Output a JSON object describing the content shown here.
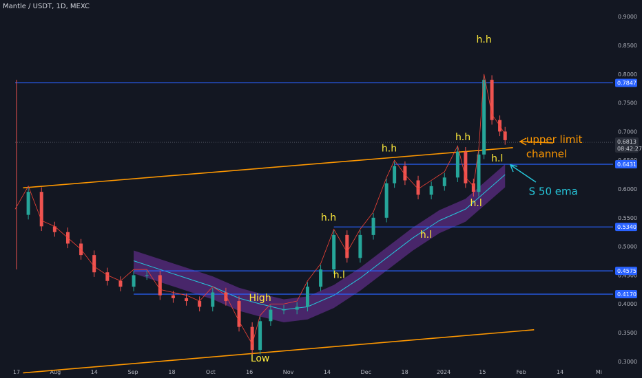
{
  "header": {
    "title": "Mantle / USDT, 1D, MEXC"
  },
  "colors": {
    "background": "#131722",
    "up": "#26a69a",
    "down": "#ef5350",
    "horizontal_line": "#2962ff",
    "channel_line": "#ff9800",
    "ema_band": "#5b2c83",
    "ema_line": "#26c6da",
    "short_ma": "#f44336",
    "annotation_text": "#ffeb3b",
    "price_tag": "#2962ff"
  },
  "chart_data": {
    "type": "candlestick",
    "title": "Mantle / USDT, 1D, MEXC",
    "x_axis": {
      "tick_labels": [
        "17",
        "Aug",
        "14",
        "Sep",
        "18",
        "Oct",
        "16",
        "Nov",
        "14",
        "Dec",
        "18",
        "2024",
        "15",
        "Feb",
        "14",
        "Mi"
      ],
      "range": [
        "2023-07-17",
        "2024-02-29"
      ]
    },
    "y_axis": {
      "tick_labels": [
        "0.9000",
        "0.8500",
        "0.8000",
        "0.7500",
        "0.7000",
        "0.6500",
        "0.6000",
        "0.5500",
        "0.5000",
        "0.4500",
        "0.4000",
        "0.3500",
        "0.3000"
      ],
      "ylim": [
        0.295,
        0.905
      ],
      "current_price": "0.6813",
      "countdown": "08:42:27",
      "position": "right"
    },
    "price_series": {
      "name": "Mantle / USDT",
      "x": [
        "2023-07-17",
        "2023-07-22",
        "2023-07-27",
        "2023-08-01",
        "2023-08-06",
        "2023-08-11",
        "2023-08-16",
        "2023-08-21",
        "2023-08-26",
        "2023-08-31",
        "2023-09-05",
        "2023-09-10",
        "2023-09-15",
        "2023-09-20",
        "2023-09-25",
        "2023-09-30",
        "2023-10-05",
        "2023-10-10",
        "2023-10-15",
        "2023-10-18",
        "2023-10-22",
        "2023-10-27",
        "2023-11-01",
        "2023-11-05",
        "2023-11-10",
        "2023-11-15",
        "2023-11-20",
        "2023-11-25",
        "2023-11-30",
        "2023-12-05",
        "2023-12-08",
        "2023-12-12",
        "2023-12-17",
        "2023-12-22",
        "2023-12-27",
        "2024-01-01",
        "2024-01-04",
        "2024-01-07",
        "2024-01-09",
        "2024-01-11",
        "2024-01-14",
        "2024-01-17",
        "2024-01-19"
      ],
      "y": [
        0.555,
        0.595,
        0.535,
        0.525,
        0.505,
        0.485,
        0.455,
        0.44,
        0.43,
        0.45,
        0.45,
        0.415,
        0.41,
        0.405,
        0.395,
        0.42,
        0.405,
        0.36,
        0.32,
        0.37,
        0.39,
        0.39,
        0.395,
        0.43,
        0.46,
        0.52,
        0.48,
        0.52,
        0.55,
        0.61,
        0.64,
        0.615,
        0.59,
        0.605,
        0.62,
        0.665,
        0.61,
        0.595,
        0.66,
        0.79,
        0.72,
        0.7,
        0.685
      ]
    },
    "ema_series": {
      "name": "50 ema",
      "x": [
        "2023-08-31",
        "2023-09-10",
        "2023-09-20",
        "2023-09-30",
        "2023-10-10",
        "2023-10-18",
        "2023-10-27",
        "2023-11-05",
        "2023-11-15",
        "2023-11-25",
        "2023-12-05",
        "2023-12-15",
        "2023-12-25",
        "2024-01-04",
        "2024-01-14",
        "2024-01-19"
      ],
      "y": [
        0.475,
        0.46,
        0.445,
        0.43,
        0.41,
        0.4,
        0.39,
        0.395,
        0.415,
        0.445,
        0.48,
        0.515,
        0.545,
        0.565,
        0.605,
        0.625
      ]
    },
    "horizontal_levels": [
      {
        "value": 0.7847,
        "label": "0.7847",
        "from": "2023-07-17"
      },
      {
        "value": 0.6431,
        "label": "0.6431",
        "from": "2023-12-08"
      },
      {
        "value": 0.534,
        "label": "0.5340",
        "from": "2023-11-15"
      },
      {
        "value": 0.4575,
        "label": "0.4575",
        "from": "2023-08-31"
      },
      {
        "value": 0.417,
        "label": "0.4170",
        "from": "2023-08-31"
      }
    ],
    "channel_lines": [
      {
        "from": [
          "2023-07-20",
          0.602
        ],
        "to": [
          "2024-01-22",
          0.672
        ]
      },
      {
        "from": [
          "2023-07-20",
          0.28
        ],
        "to": [
          "2024-01-30",
          0.355
        ]
      }
    ],
    "annotations": [
      {
        "text": "h.h",
        "at": [
          "2024-01-11",
          0.855
        ]
      },
      {
        "text": "h.h",
        "at": [
          "2024-01-03",
          0.685
        ]
      },
      {
        "text": "h.h",
        "at": [
          "2023-12-06",
          0.665
        ]
      },
      {
        "text": "h.h",
        "at": [
          "2023-11-13",
          0.545
        ]
      },
      {
        "text": "h.l",
        "at": [
          "2024-01-16",
          0.648
        ]
      },
      {
        "text": "h.l",
        "at": [
          "2024-01-08",
          0.57
        ]
      },
      {
        "text": "h.l",
        "at": [
          "2023-12-20",
          0.515
        ]
      },
      {
        "text": "h.l",
        "at": [
          "2023-11-17",
          0.445
        ]
      },
      {
        "text": "High",
        "at": [
          "2023-10-18",
          0.405
        ]
      },
      {
        "text": "Low",
        "at": [
          "2023-10-18",
          0.3
        ]
      },
      {
        "text": "upper limit",
        "at": [
          "2024-01-27",
          0.68
        ]
      },
      {
        "text": "channel",
        "at": [
          "2024-01-27",
          0.655
        ]
      },
      {
        "text": "S 50 ema",
        "at": [
          "2024-01-28",
          0.59
        ]
      }
    ]
  }
}
